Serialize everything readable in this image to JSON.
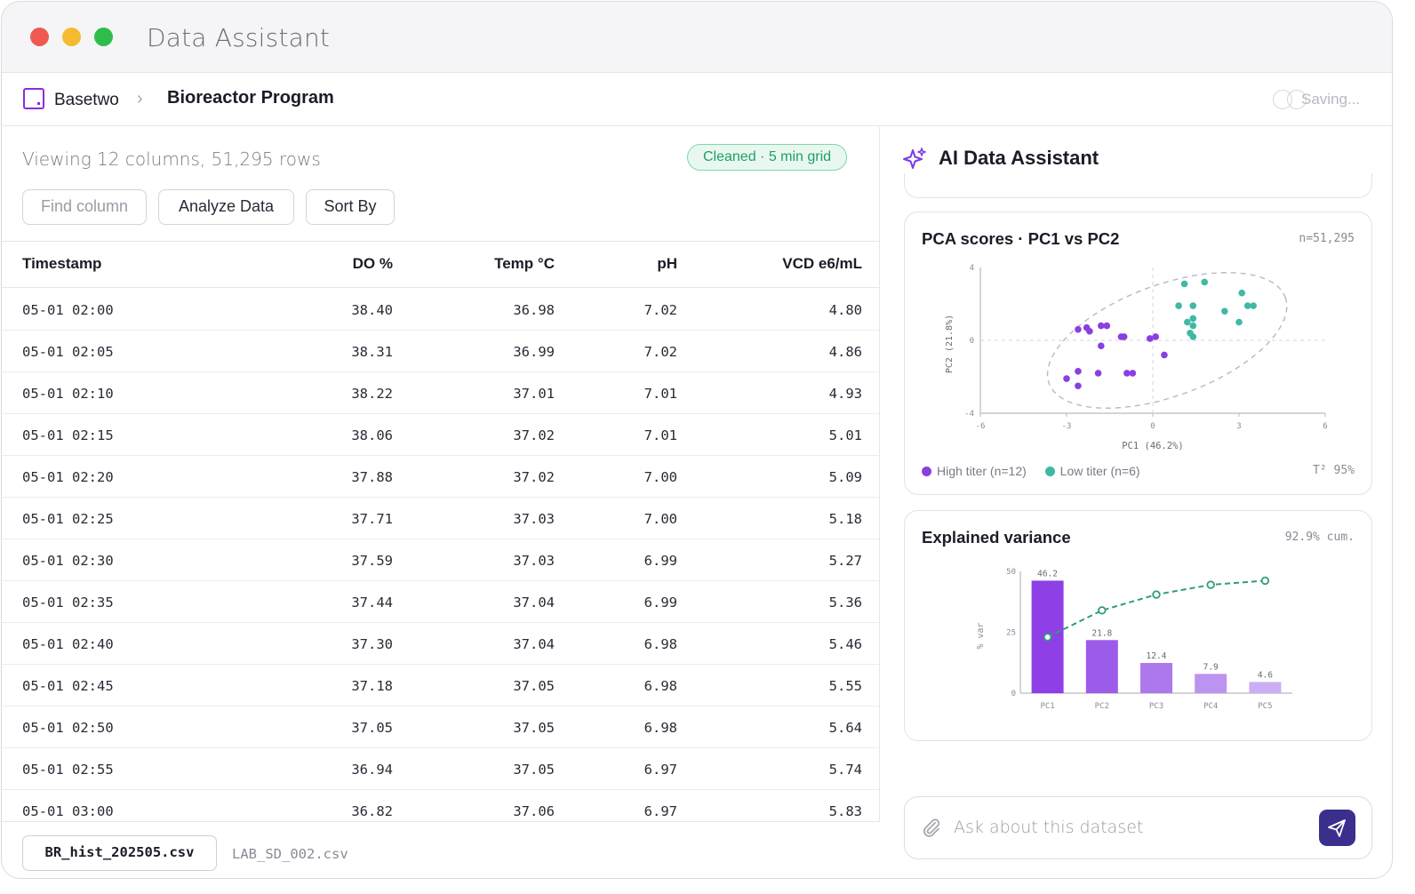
{
  "window": {
    "title": "Data Assistant"
  },
  "nav": {
    "brand": "Basetwo",
    "separator": "›",
    "current": "Bioreactor Program",
    "status": "Saving..."
  },
  "dataset": {
    "summary": "Viewing 12 columns, 51,295 rows",
    "badge": "Cleaned · 5 min grid",
    "toolbar": {
      "find_placeholder": "Find column",
      "analyze_label": "Analyze Data",
      "sort_label": "Sort By"
    },
    "columns": [
      "Timestamp",
      "DO %",
      "Temp °C",
      "pH",
      "VCD e6/mL"
    ],
    "rows": [
      [
        "05-01 02:00",
        "38.40",
        "36.98",
        "7.02",
        "4.80"
      ],
      [
        "05-01 02:05",
        "38.31",
        "36.99",
        "7.02",
        "4.86"
      ],
      [
        "05-01 02:10",
        "38.22",
        "37.01",
        "7.01",
        "4.93"
      ],
      [
        "05-01 02:15",
        "38.06",
        "37.02",
        "7.01",
        "5.01"
      ],
      [
        "05-01 02:20",
        "37.88",
        "37.02",
        "7.00",
        "5.09"
      ],
      [
        "05-01 02:25",
        "37.71",
        "37.03",
        "7.00",
        "5.18"
      ],
      [
        "05-01 02:30",
        "37.59",
        "37.03",
        "6.99",
        "5.27"
      ],
      [
        "05-01 02:35",
        "37.44",
        "37.04",
        "6.99",
        "5.36"
      ],
      [
        "05-01 02:40",
        "37.30",
        "37.04",
        "6.98",
        "5.46"
      ],
      [
        "05-01 02:45",
        "37.18",
        "37.05",
        "6.98",
        "5.55"
      ],
      [
        "05-01 02:50",
        "37.05",
        "37.05",
        "6.98",
        "5.64"
      ],
      [
        "05-01 02:55",
        "36.94",
        "37.05",
        "6.97",
        "5.74"
      ],
      [
        "05-01 03:00",
        "36.82",
        "37.06",
        "6.97",
        "5.83"
      ]
    ],
    "files": {
      "active": "BR_hist_202505.csv",
      "other": "LAB_SD_002.csv"
    }
  },
  "assistant": {
    "title": "AI Data Assistant",
    "icon": "sparkle-icon",
    "input_placeholder": "Ask about this dataset",
    "attach_icon": "paperclip-icon",
    "send_icon": "send-icon"
  },
  "colors": {
    "brand": "#8b2be2",
    "high_titer": "#8a3fe0",
    "low_titer": "#3fb9a4",
    "cleaned_green": "#1f9e64",
    "send_button": "#3a2f8c"
  },
  "chart_data": [
    {
      "type": "scatter",
      "title": "PCA scores · PC1 vs PC2",
      "meta": "n=51,295",
      "xlabel": "PC1 (46.2%)",
      "ylabel": "PC2 (21.8%)",
      "xlim": [
        -6,
        6
      ],
      "ylim": [
        -4,
        4
      ],
      "xticks": [
        "-6",
        "-3",
        "0",
        "3",
        "6"
      ],
      "yticks": [
        "4",
        "0",
        "-4"
      ],
      "confidence_label": "T² 95%",
      "ellipse": {
        "cx": 0.5,
        "cy": 0,
        "rx": 5.4,
        "ry": 3.4,
        "rotation_deg": -20
      },
      "series": [
        {
          "name": "High titer (n=12)",
          "color": "#8a3fe0",
          "points": [
            [
              -2.6,
              0.6
            ],
            [
              -2.3,
              0.7
            ],
            [
              -2.2,
              0.5
            ],
            [
              -1.8,
              0.8
            ],
            [
              -1.6,
              0.8
            ],
            [
              -1.8,
              -0.3
            ],
            [
              -1.1,
              0.2
            ],
            [
              -1.0,
              0.2
            ],
            [
              -0.9,
              -1.8
            ],
            [
              -0.7,
              -1.8
            ],
            [
              -2.6,
              -1.7
            ],
            [
              -3.0,
              -2.1
            ],
            [
              -2.6,
              -2.5
            ],
            [
              -1.9,
              -1.8
            ]
          ]
        },
        {
          "name": "Low titer (n=6)",
          "color": "#3fb9a4",
          "points": [
            [
              1.1,
              3.1
            ],
            [
              1.8,
              3.2
            ],
            [
              3.1,
              2.6
            ],
            [
              3.3,
              1.9
            ],
            [
              3.5,
              1.9
            ],
            [
              2.5,
              1.6
            ],
            [
              1.4,
              1.9
            ],
            [
              0.9,
              1.9
            ],
            [
              1.4,
              1.2
            ],
            [
              1.2,
              1.0
            ],
            [
              1.4,
              0.8
            ],
            [
              1.3,
              0.4
            ],
            [
              1.4,
              0.2
            ],
            [
              3.0,
              1.0
            ]
          ]
        },
        {
          "name": "",
          "color": "#8a3fe0",
          "points": [
            [
              -0.1,
              0.1
            ],
            [
              0.1,
              0.2
            ],
            [
              0.4,
              -0.8
            ]
          ]
        }
      ]
    },
    {
      "type": "bar",
      "title": "Explained variance",
      "meta": "92.9% cum.",
      "ylabel": "% var",
      "categories": [
        "PC1",
        "PC2",
        "PC3",
        "PC4",
        "PC5"
      ],
      "values": [
        46.2,
        21.8,
        12.4,
        7.9,
        4.6
      ],
      "value_labels": [
        "46.2",
        "21.8",
        "12.4",
        "7.9",
        "4.6"
      ],
      "cumulative": [
        23,
        34,
        40.5,
        44.5,
        46.2
      ],
      "ylim": [
        0,
        50
      ],
      "yticks": [
        "50",
        "25",
        "0"
      ],
      "bar_colors": [
        "#8e3fe6",
        "#9d5be9",
        "#ad78ec",
        "#bc93f0",
        "#cbaef3"
      ],
      "line_color": "#2e9e78"
    }
  ]
}
